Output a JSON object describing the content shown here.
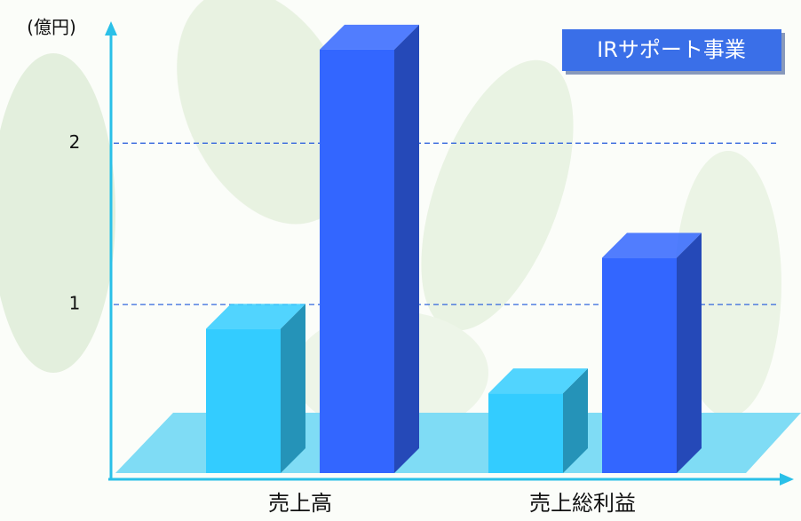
{
  "chart_data": {
    "type": "bar3d",
    "y_axis_label": "(億円)",
    "annotation": "IRサポート事業",
    "categories": [
      "売上高",
      "売上総利益"
    ],
    "series": [
      {
        "color": "#33ccff",
        "values": [
          0.85,
          0.45
        ]
      },
      {
        "color": "#3366ff",
        "values": [
          2.58,
          1.29
        ]
      }
    ],
    "ylim": [
      0,
      2.7
    ],
    "yticks": [
      1,
      2
    ],
    "grid": true
  }
}
